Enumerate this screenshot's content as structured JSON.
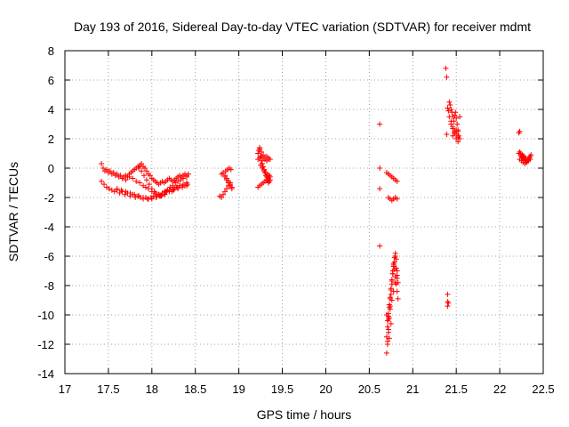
{
  "chart_data": {
    "type": "scatter",
    "title": "Day 193 of 2016, Sidereal Day-to-day VTEC variation (SDTVAR) for receiver mdmt",
    "xlabel": "GPS time / hours",
    "ylabel": "SDTVAR / TECUs",
    "xlim": [
      17,
      22.5
    ],
    "ylim": [
      -14,
      8
    ],
    "xticks": [
      17,
      17.5,
      18,
      18.5,
      19,
      19.5,
      20,
      20.5,
      21,
      21.5,
      22,
      22.5
    ],
    "yticks": [
      -14,
      -12,
      -10,
      -8,
      -6,
      -4,
      -2,
      0,
      2,
      4,
      6,
      8
    ],
    "xtick_labels": [
      "17",
      "17.5",
      "18",
      "18.5",
      "19",
      "19.5",
      "20",
      "20.5",
      "21",
      "21.5",
      "22",
      "22.5"
    ],
    "ytick_labels": [
      "-14",
      "-12",
      "-10",
      "-8",
      "-6",
      "-4",
      "-2",
      "0",
      "2",
      "4",
      "6",
      "8"
    ],
    "grid": true,
    "marker": "+",
    "color": "#ff0000",
    "series": [
      {
        "name": "SDTVAR",
        "x": [
          17.42,
          17.44,
          17.46,
          17.48,
          17.5,
          17.52,
          17.54,
          17.56,
          17.58,
          17.6,
          17.62,
          17.64,
          17.66,
          17.68,
          17.7,
          17.72,
          17.74,
          17.76,
          17.78,
          17.8,
          17.82,
          17.84,
          17.86,
          17.88,
          17.9,
          17.92,
          17.94,
          17.96,
          17.98,
          18.0,
          18.02,
          18.04,
          18.06,
          18.08,
          18.1,
          18.12,
          18.14,
          18.16,
          18.18,
          18.2,
          18.22,
          18.24,
          18.26,
          18.28,
          18.3,
          18.32,
          18.34,
          18.36,
          18.38,
          18.4,
          18.42,
          17.42,
          17.45,
          17.48,
          17.51,
          17.54,
          17.57,
          17.6,
          17.63,
          17.66,
          17.69,
          17.72,
          17.75,
          17.78,
          17.81,
          17.84,
          17.87,
          17.9,
          17.93,
          17.96,
          17.99,
          18.02,
          18.05,
          18.08,
          18.11,
          18.14,
          18.17,
          18.2,
          18.23,
          18.26,
          18.29,
          18.32,
          18.35,
          18.38,
          18.41,
          17.7,
          17.74,
          17.78,
          17.82,
          17.86,
          17.9,
          17.93,
          17.96,
          18.0,
          18.04,
          18.08,
          18.12,
          18.16,
          18.2,
          18.24,
          18.28,
          18.32,
          18.36,
          18.4,
          17.85,
          17.88,
          17.91,
          17.94,
          17.97,
          18.0,
          18.03,
          18.06,
          18.09,
          18.12,
          18.15,
          18.18,
          18.21,
          18.24,
          18.27,
          18.3,
          18.33,
          18.36,
          18.4,
          17.6,
          17.65,
          17.7,
          17.75,
          17.8,
          17.85,
          17.9,
          17.95,
          18.0,
          18.05,
          18.1,
          18.15,
          18.2,
          18.25,
          18.3,
          18.35,
          18.4,
          18.78,
          18.8,
          18.82,
          18.84,
          18.86,
          18.88,
          18.9,
          18.8,
          18.82,
          18.84,
          18.86,
          18.88,
          18.9,
          18.92,
          18.84,
          18.86,
          18.88,
          18.9,
          18.92,
          18.85,
          18.87,
          18.89,
          18.91,
          19.22,
          19.23,
          19.24,
          19.25,
          19.26,
          19.27,
          19.28,
          19.29,
          19.3,
          19.31,
          19.32,
          19.33,
          19.34,
          19.35,
          19.36,
          19.22,
          19.24,
          19.26,
          19.28,
          19.3,
          19.32,
          19.34,
          19.22,
          19.24,
          19.26,
          19.28,
          19.3,
          19.32,
          19.34,
          19.36,
          19.25,
          19.27,
          19.29,
          19.31,
          19.33,
          19.35,
          19.24,
          19.26,
          19.28,
          19.3,
          19.32,
          19.34,
          19.36,
          20.62,
          20.62,
          20.62,
          20.62,
          20.7,
          20.72,
          20.74,
          20.76,
          20.78,
          20.8,
          20.82,
          20.72,
          20.74,
          20.76,
          20.78,
          20.8,
          20.82,
          20.7,
          20.71,
          20.72,
          20.73,
          20.74,
          20.75,
          20.76,
          20.77,
          20.78,
          20.79,
          20.8,
          20.81,
          20.82,
          20.83,
          20.7,
          20.71,
          20.72,
          20.73,
          20.74,
          20.75,
          20.76,
          20.77,
          20.78,
          20.79,
          20.8,
          20.81,
          20.82,
          20.71,
          20.72,
          20.73,
          20.74,
          20.75,
          20.76,
          20.77,
          20.78,
          20.79,
          20.8,
          20.81,
          20.82,
          20.83,
          20.7,
          20.72,
          20.74,
          20.76,
          20.78,
          20.8,
          20.82,
          20.72,
          20.75,
          20.71,
          20.73,
          21.38,
          21.39,
          21.4,
          21.41,
          21.42,
          21.43,
          21.44,
          21.45,
          21.46,
          21.47,
          21.48,
          21.49,
          21.5,
          21.51,
          21.52,
          21.53,
          21.54,
          21.42,
          21.44,
          21.46,
          21.48,
          21.5,
          21.52,
          21.54,
          21.44,
          21.46,
          21.48,
          21.5,
          21.52,
          21.46,
          21.48,
          21.5,
          21.52,
          21.39,
          21.4,
          21.41,
          21.4,
          21.4,
          22.22,
          22.23,
          22.24,
          22.25,
          22.26,
          22.27,
          22.28,
          22.29,
          22.3,
          22.31,
          22.32,
          22.33,
          22.34,
          22.35,
          22.36,
          22.23,
          22.25,
          22.27,
          22.29,
          22.31,
          22.33,
          22.35,
          22.24,
          22.26,
          22.28,
          22.3,
          22.32,
          22.34,
          22.22,
          22.23
        ],
        "y": [
          0.3,
          0.0,
          -0.2,
          -0.1,
          -0.3,
          -0.2,
          -0.4,
          -0.3,
          -0.5,
          -0.4,
          -0.6,
          -0.5,
          -0.7,
          -0.6,
          -0.8,
          -0.6,
          -0.4,
          -0.3,
          -0.2,
          -0.1,
          0.0,
          0.1,
          0.2,
          0.3,
          0.1,
          0.0,
          -0.2,
          -0.4,
          -0.5,
          -0.7,
          -0.8,
          -0.9,
          -1.0,
          -1.1,
          -1.0,
          -0.9,
          -1.0,
          -0.9,
          -0.8,
          -0.7,
          -0.8,
          -0.9,
          -0.8,
          -0.7,
          -0.6,
          -0.5,
          -0.6,
          -0.5,
          -0.4,
          -0.5,
          -0.4,
          -0.9,
          -1.1,
          -1.3,
          -1.4,
          -1.5,
          -1.6,
          -1.5,
          -1.7,
          -1.6,
          -1.8,
          -1.7,
          -1.9,
          -1.8,
          -2.0,
          -1.9,
          -2.0,
          -2.1,
          -2.0,
          -2.1,
          -2.0,
          -1.9,
          -2.0,
          -1.8,
          -1.9,
          -1.7,
          -1.6,
          -1.5,
          -1.6,
          -1.4,
          -1.3,
          -1.2,
          -1.3,
          -1.2,
          -1.1,
          -0.5,
          -0.6,
          -0.7,
          -0.9,
          -1.0,
          -1.2,
          -1.3,
          -1.4,
          -1.6,
          -1.7,
          -1.8,
          -1.7,
          -1.6,
          -1.5,
          -1.4,
          -1.3,
          -1.2,
          -1.1,
          -1.0,
          0.0,
          -0.2,
          -0.5,
          -0.8,
          -1.1,
          -1.4,
          -1.6,
          -1.8,
          -1.9,
          -1.8,
          -1.6,
          -1.5,
          -1.3,
          -1.2,
          -1.0,
          -0.9,
          -0.8,
          -0.7,
          -0.6,
          -1.4,
          -1.5,
          -1.6,
          -1.7,
          -1.8,
          -1.9,
          -2.0,
          -2.1,
          -2.1,
          -2.0,
          -1.9,
          -1.8,
          -1.6,
          -1.5,
          -1.4,
          -1.3,
          -1.2,
          -1.9,
          -2.0,
          -1.8,
          -1.6,
          -1.4,
          -1.2,
          -1.0,
          -0.4,
          -0.3,
          -0.5,
          -0.7,
          -0.9,
          -1.1,
          -1.3,
          -0.6,
          -0.8,
          -1.0,
          -1.2,
          -1.4,
          -0.2,
          -0.1,
          0.0,
          -0.1,
          1.0,
          1.2,
          1.3,
          0.8,
          0.5,
          0.3,
          0.1,
          -0.1,
          -0.3,
          -0.5,
          -0.6,
          -0.8,
          -1.0,
          -0.9,
          -0.8,
          0.6,
          0.7,
          0.8,
          0.7,
          0.6,
          0.5,
          0.6,
          -1.3,
          -1.2,
          -1.1,
          -1.0,
          -0.9,
          -0.8,
          -0.7,
          -0.6,
          0.2,
          0.0,
          -0.2,
          -0.3,
          -0.4,
          -0.5,
          1.4,
          1.1,
          0.9,
          0.7,
          0.8,
          0.7,
          0.6,
          3.0,
          0.0,
          -1.4,
          -5.3,
          -0.3,
          -0.4,
          -0.5,
          -0.6,
          -0.7,
          -0.8,
          -0.9,
          -2.0,
          -2.1,
          -2.2,
          -2.1,
          -2.0,
          -2.1,
          -12.6,
          -11.8,
          -11.0,
          -10.2,
          -9.4,
          -8.6,
          -7.9,
          -7.2,
          -6.6,
          -6.1,
          -5.8,
          -6.2,
          -7.0,
          -7.8,
          -11.5,
          -10.8,
          -10.1,
          -9.5,
          -8.9,
          -8.3,
          -7.7,
          -7.2,
          -6.7,
          -6.4,
          -6.0,
          -6.8,
          -7.5,
          -10.4,
          -9.9,
          -9.3,
          -8.8,
          -8.2,
          -7.6,
          -7.0,
          -6.5,
          -6.9,
          -7.4,
          -7.9,
          -8.4,
          -8.9,
          -10.0,
          -10.3,
          -9.6,
          -9.0,
          -8.4,
          -7.8,
          -7.3,
          -11.2,
          -10.6,
          -12.0,
          -11.6,
          6.8,
          6.2,
          4.1,
          3.9,
          4.5,
          4.3,
          4.0,
          3.8,
          3.5,
          3.2,
          3.6,
          3.8,
          3.4,
          3.0,
          2.6,
          2.2,
          3.5,
          3.5,
          3.2,
          2.8,
          2.4,
          2.0,
          1.8,
          2.0,
          3.0,
          2.7,
          2.5,
          2.3,
          2.1,
          2.2,
          2.4,
          2.6,
          2.5,
          2.3,
          -8.6,
          -9.2,
          -9.4,
          -9.1,
          1.0,
          1.1,
          0.9,
          0.8,
          0.7,
          0.8,
          0.7,
          0.6,
          0.5,
          0.4,
          0.5,
          0.6,
          0.7,
          0.8,
          0.9,
          0.6,
          0.5,
          0.4,
          0.3,
          0.4,
          0.5,
          0.6,
          1.0,
          0.9,
          0.8,
          0.7,
          0.6,
          0.7,
          2.4,
          2.5
        ]
      }
    ]
  }
}
